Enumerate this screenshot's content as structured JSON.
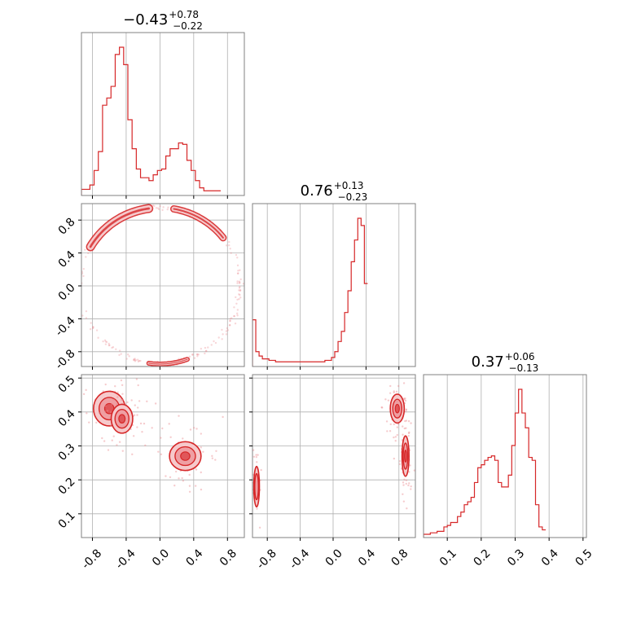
{
  "colors": {
    "accent": "#d62728",
    "fill_light": "#f6c9cb",
    "fill_mid": "#ec8d92",
    "grid": "#b0b0b0",
    "axis": "#808080"
  },
  "chart_data": {
    "type": "corner",
    "grid": true,
    "params": [
      {
        "range": [
          -0.93,
          1.0
        ],
        "ticks": [
          "-0.8",
          "-0.4",
          "0.0",
          "0.4",
          "0.8"
        ],
        "tick_values": [
          -0.8,
          -0.4,
          0.0,
          0.4,
          0.8
        ],
        "title": {
          "base": "−0.43",
          "sup": "+0.78",
          "sub": "−0.22"
        }
      },
      {
        "range": [
          -0.98,
          1.0
        ],
        "ticks": [
          "-0.8",
          "-0.4",
          "0.0",
          "0.4",
          "0.8"
        ],
        "tick_values": [
          -0.8,
          -0.4,
          0.0,
          0.4,
          0.8
        ],
        "title": {
          "base": "0.76",
          "sup": "+0.13",
          "sub": "−0.23"
        }
      },
      {
        "range": [
          0.03,
          0.51
        ],
        "ticks": [
          "0.1",
          "0.2",
          "0.3",
          "0.4",
          "0.5"
        ],
        "tick_values": [
          0.1,
          0.2,
          0.3,
          0.4,
          0.5
        ],
        "title": {
          "base": "0.37",
          "sup": "+0.06",
          "sub": "−0.13"
        }
      }
    ],
    "hist_1": {
      "x_start": -0.93,
      "bin_width": 0.05,
      "counts": [
        2,
        2,
        5,
        15,
        28,
        60,
        65,
        73,
        95,
        100,
        88,
        50,
        30,
        16,
        10,
        10,
        8,
        12,
        15,
        16,
        25,
        30,
        30,
        34,
        33,
        22,
        15,
        8,
        3,
        1,
        1,
        1,
        1
      ]
    },
    "hist_2": {
      "x_start": -0.98,
      "bin_width": 0.04,
      "counts": [
        30,
        8,
        5,
        3,
        3,
        2,
        2,
        1,
        1,
        1,
        1,
        1,
        1,
        1,
        1,
        1,
        1,
        1,
        1,
        1,
        1,
        1,
        2,
        2,
        4,
        8,
        15,
        22,
        35,
        50,
        70,
        85,
        100,
        95,
        55
      ]
    },
    "hist_3": {
      "x_start": 0.03,
      "bin_width": 0.01,
      "counts": [
        0,
        0,
        1,
        1,
        2,
        2,
        5,
        6,
        8,
        8,
        12,
        15,
        20,
        22,
        25,
        35,
        45,
        47,
        50,
        52,
        53,
        50,
        35,
        32,
        32,
        40,
        60,
        82,
        98,
        82,
        72,
        52,
        50,
        20,
        5,
        3
      ]
    },
    "panel_21": {
      "kind": "ring",
      "center": [
        0.0,
        0.0
      ],
      "radius": 0.95,
      "dense_arcs": [
        {
          "from_deg": 150,
          "to_deg": 98,
          "level": "high"
        },
        {
          "from_deg": 80,
          "to_deg": 38,
          "level": "mid"
        },
        {
          "from_deg": 262,
          "to_deg": 290,
          "level": "low"
        }
      ]
    },
    "panel_31": {
      "kind": "blobs",
      "clusters": [
        {
          "center": [
            -0.6,
            0.41
          ],
          "spread": [
            0.22,
            0.06
          ],
          "level": "high"
        },
        {
          "center": [
            -0.45,
            0.38
          ],
          "spread": [
            0.15,
            0.05
          ],
          "level": "mid"
        },
        {
          "center": [
            0.3,
            0.27
          ],
          "spread": [
            0.22,
            0.05
          ],
          "level": "mid"
        }
      ]
    },
    "panel_32": {
      "kind": "blobs",
      "clusters": [
        {
          "center": [
            0.78,
            0.41
          ],
          "spread": [
            0.1,
            0.05
          ],
          "level": "high"
        },
        {
          "center": [
            0.88,
            0.27
          ],
          "spread": [
            0.05,
            0.07
          ],
          "level": "mid"
        },
        {
          "center": [
            -0.93,
            0.18
          ],
          "spread": [
            0.04,
            0.07
          ],
          "level": "low"
        }
      ]
    }
  }
}
